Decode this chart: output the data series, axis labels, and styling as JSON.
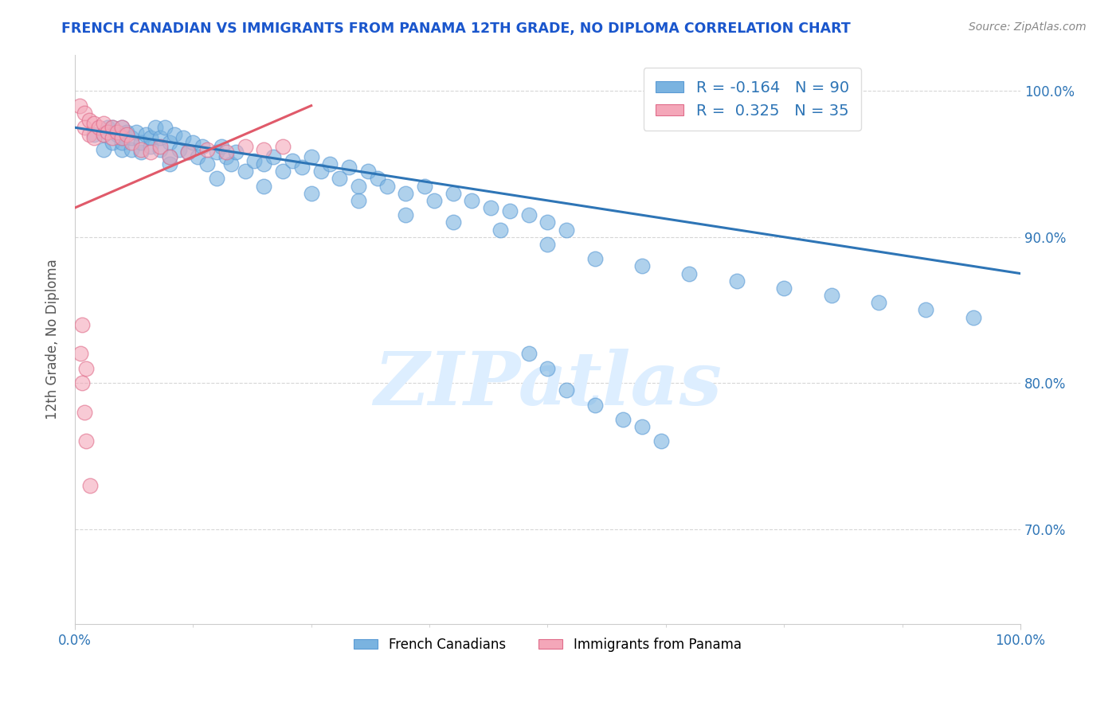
{
  "title": "FRENCH CANADIAN VS IMMIGRANTS FROM PANAMA 12TH GRADE, NO DIPLOMA CORRELATION CHART",
  "source_text": "Source: ZipAtlas.com",
  "ylabel": "12th Grade, No Diploma",
  "xlim": [
    0.0,
    1.0
  ],
  "ylim": [
    0.635,
    1.025
  ],
  "yticks": [
    0.7,
    0.8,
    0.9,
    1.0
  ],
  "ytick_labels": [
    "70.0%",
    "80.0%",
    "90.0%",
    "100.0%"
  ],
  "xtick_labels": [
    "0.0%",
    "100.0%"
  ],
  "xticks": [
    0.0,
    1.0
  ],
  "watermark": "ZIPatlas",
  "blue_color": "#7ab3e0",
  "pink_color": "#f4a7b9",
  "blue_edge_color": "#5b9bd5",
  "pink_edge_color": "#e06c8a",
  "blue_line_color": "#2e75b6",
  "pink_line_color": "#e05a6a",
  "title_color": "#1a56cc",
  "axis_label_color": "#555555",
  "tick_label_color": "#2e75b6",
  "source_color": "#888888",
  "watermark_color": "#ddeeff",
  "legend_blue_r": "-0.164",
  "legend_blue_n": "90",
  "legend_pink_r": "0.325",
  "legend_pink_n": "35",
  "blue_scatter_x": [
    0.02,
    0.03,
    0.03,
    0.035,
    0.04,
    0.04,
    0.045,
    0.05,
    0.05,
    0.05,
    0.05,
    0.055,
    0.06,
    0.06,
    0.065,
    0.07,
    0.07,
    0.075,
    0.08,
    0.08,
    0.085,
    0.09,
    0.09,
    0.095,
    0.1,
    0.1,
    0.105,
    0.11,
    0.115,
    0.12,
    0.125,
    0.13,
    0.135,
    0.14,
    0.15,
    0.155,
    0.16,
    0.165,
    0.17,
    0.18,
    0.19,
    0.2,
    0.21,
    0.22,
    0.23,
    0.24,
    0.25,
    0.26,
    0.27,
    0.28,
    0.29,
    0.3,
    0.31,
    0.32,
    0.33,
    0.35,
    0.37,
    0.38,
    0.4,
    0.42,
    0.44,
    0.46,
    0.48,
    0.5,
    0.52,
    0.1,
    0.15,
    0.2,
    0.25,
    0.3,
    0.35,
    0.4,
    0.45,
    0.5,
    0.55,
    0.6,
    0.65,
    0.7,
    0.75,
    0.8,
    0.85,
    0.9,
    0.95,
    0.48,
    0.5,
    0.52,
    0.55,
    0.58,
    0.6,
    0.62
  ],
  "blue_scatter_y": [
    0.97,
    0.96,
    0.97,
    0.975,
    0.965,
    0.975,
    0.97,
    0.96,
    0.968,
    0.975,
    0.965,
    0.972,
    0.96,
    0.968,
    0.972,
    0.958,
    0.965,
    0.97,
    0.962,
    0.968,
    0.975,
    0.96,
    0.968,
    0.975,
    0.955,
    0.965,
    0.97,
    0.96,
    0.968,
    0.958,
    0.965,
    0.955,
    0.962,
    0.95,
    0.958,
    0.962,
    0.955,
    0.95,
    0.958,
    0.945,
    0.952,
    0.95,
    0.955,
    0.945,
    0.952,
    0.948,
    0.955,
    0.945,
    0.95,
    0.94,
    0.948,
    0.935,
    0.945,
    0.94,
    0.935,
    0.93,
    0.935,
    0.925,
    0.93,
    0.925,
    0.92,
    0.918,
    0.915,
    0.91,
    0.905,
    0.95,
    0.94,
    0.935,
    0.93,
    0.925,
    0.915,
    0.91,
    0.905,
    0.895,
    0.885,
    0.88,
    0.875,
    0.87,
    0.865,
    0.86,
    0.855,
    0.85,
    0.845,
    0.82,
    0.81,
    0.795,
    0.785,
    0.775,
    0.77,
    0.76
  ],
  "pink_scatter_x": [
    0.005,
    0.01,
    0.01,
    0.015,
    0.015,
    0.02,
    0.02,
    0.025,
    0.03,
    0.03,
    0.035,
    0.04,
    0.04,
    0.045,
    0.05,
    0.05,
    0.055,
    0.06,
    0.07,
    0.08,
    0.09,
    0.1,
    0.12,
    0.14,
    0.16,
    0.18,
    0.2,
    0.22,
    0.006,
    0.008,
    0.01,
    0.012,
    0.016,
    0.008,
    0.012
  ],
  "pink_scatter_y": [
    0.99,
    0.985,
    0.975,
    0.98,
    0.97,
    0.978,
    0.968,
    0.975,
    0.97,
    0.978,
    0.972,
    0.968,
    0.975,
    0.972,
    0.968,
    0.975,
    0.97,
    0.965,
    0.96,
    0.958,
    0.962,
    0.955,
    0.958,
    0.96,
    0.958,
    0.962,
    0.96,
    0.962,
    0.82,
    0.8,
    0.78,
    0.76,
    0.73,
    0.84,
    0.81
  ],
  "blue_trend_x": [
    0.0,
    1.0
  ],
  "blue_trend_y": [
    0.975,
    0.875
  ],
  "pink_trend_x": [
    0.0,
    0.25
  ],
  "pink_trend_y": [
    0.92,
    0.99
  ]
}
